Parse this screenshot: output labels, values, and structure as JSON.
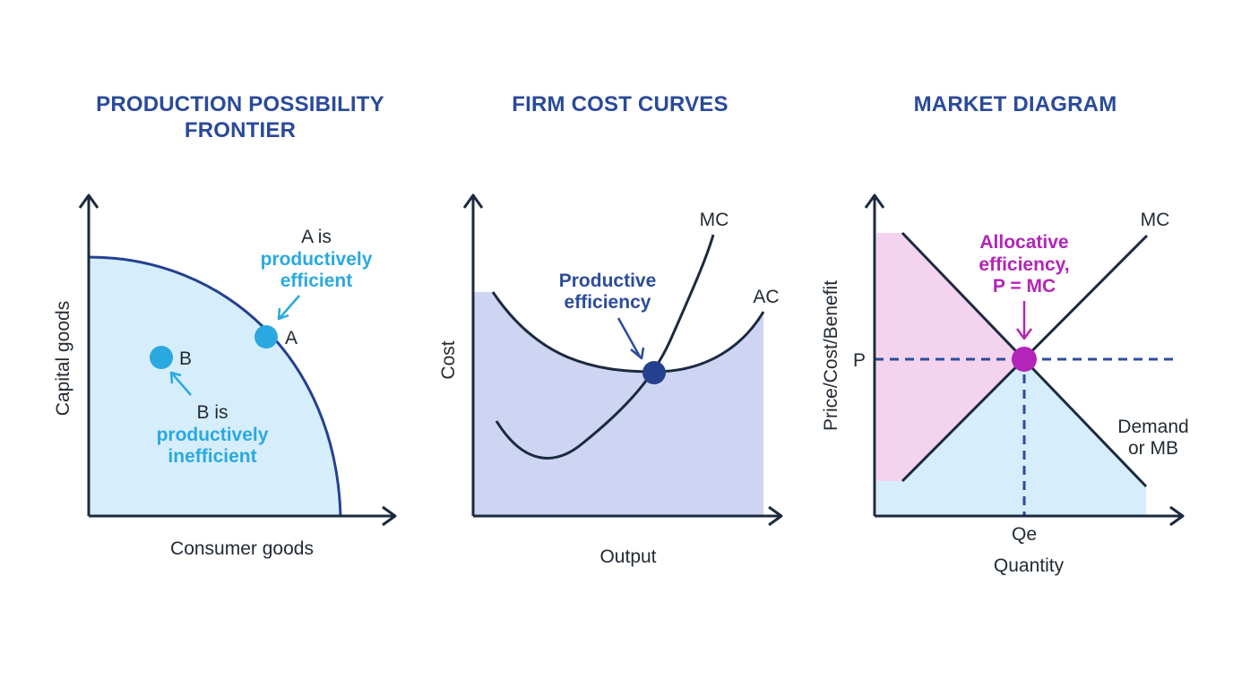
{
  "ppf": {
    "title_line1": "PRODUCTION POSSIBILITY",
    "title_line2": "FRONTIER",
    "y_label": "Capital goods",
    "x_label": "Consumer goods",
    "point_a_label": "A",
    "point_b_label": "B",
    "note_a_line1": "A is",
    "note_a_line2": "productively",
    "note_a_line3": "efficient",
    "note_b_line1": "B is",
    "note_b_line2": "productively",
    "note_b_line3": "inefficient"
  },
  "cost": {
    "title": "FIRM COST CURVES",
    "y_label": "Cost",
    "x_label": "Output",
    "mc_label": "MC",
    "ac_label": "AC",
    "note_line1": "Productive",
    "note_line2": "efficiency"
  },
  "market": {
    "title": "MARKET DIAGRAM",
    "y_label": "Price/Cost/Benefit",
    "x_label": "Quantity",
    "mc_label": "MC",
    "demand_line1": "Demand",
    "demand_line2": "or MB",
    "p_label": "P",
    "qe_label": "Qe",
    "note_line1": "Allocative",
    "note_line2": "efficiency,",
    "note_line3": "P = MC"
  },
  "colors": {
    "axis": "#1c2a3e",
    "curve": "#24408f",
    "ppf_fill": "#d6eefb",
    "cost_fill": "#cdd5f3",
    "consumer_surplus": "#f4d3ee",
    "producer_surplus": "#d6eefb",
    "cyan": "#2aa9e0",
    "navy": "#2c4c9c",
    "magenta": "#b325b8",
    "title": "#2a4a9a"
  }
}
